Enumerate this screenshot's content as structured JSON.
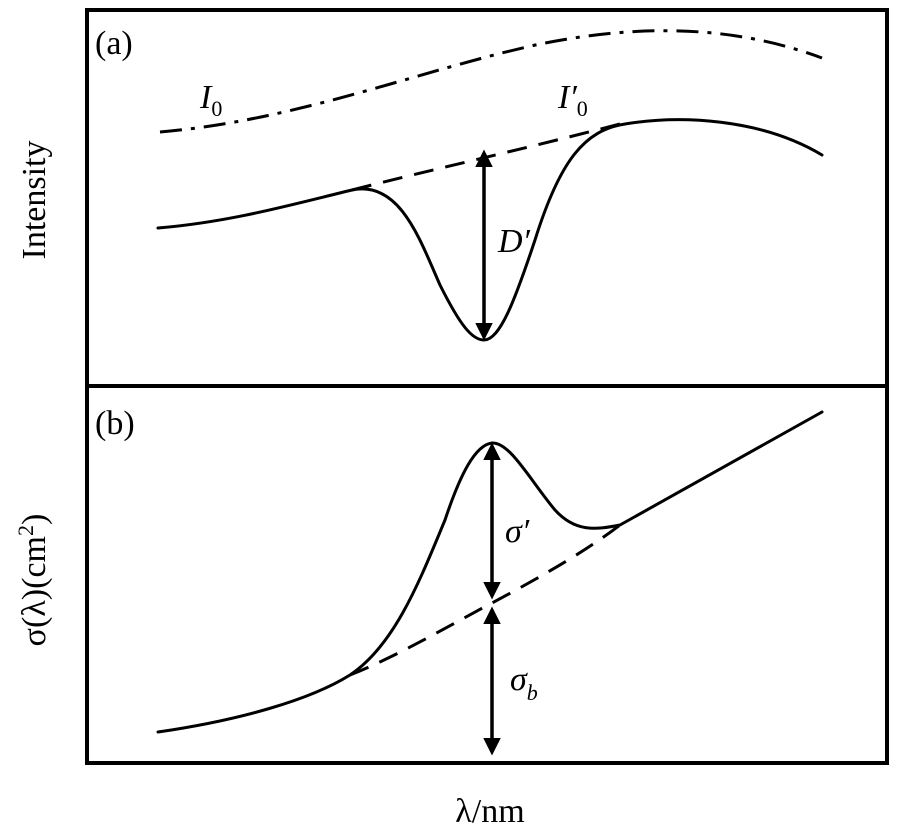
{
  "panel_a": {
    "label": "(a)",
    "y_axis_label": "Intensity",
    "I0_label": {
      "main": "I",
      "sub": "0"
    },
    "I0_prime_label": {
      "main": "I′",
      "sub": "0"
    },
    "depth_label": "D′"
  },
  "panel_b": {
    "label": "(b)",
    "y_axis_label": {
      "pre": "σ(λ)(cm",
      "sup": "2",
      "post": ")"
    },
    "sigma_prime_label": "σ′",
    "sigma_b_label": {
      "main": "σ",
      "sub": "b"
    }
  },
  "x_axis_label": "λ/nm",
  "colors": {
    "line": "#000000",
    "background": "#ffffff"
  }
}
